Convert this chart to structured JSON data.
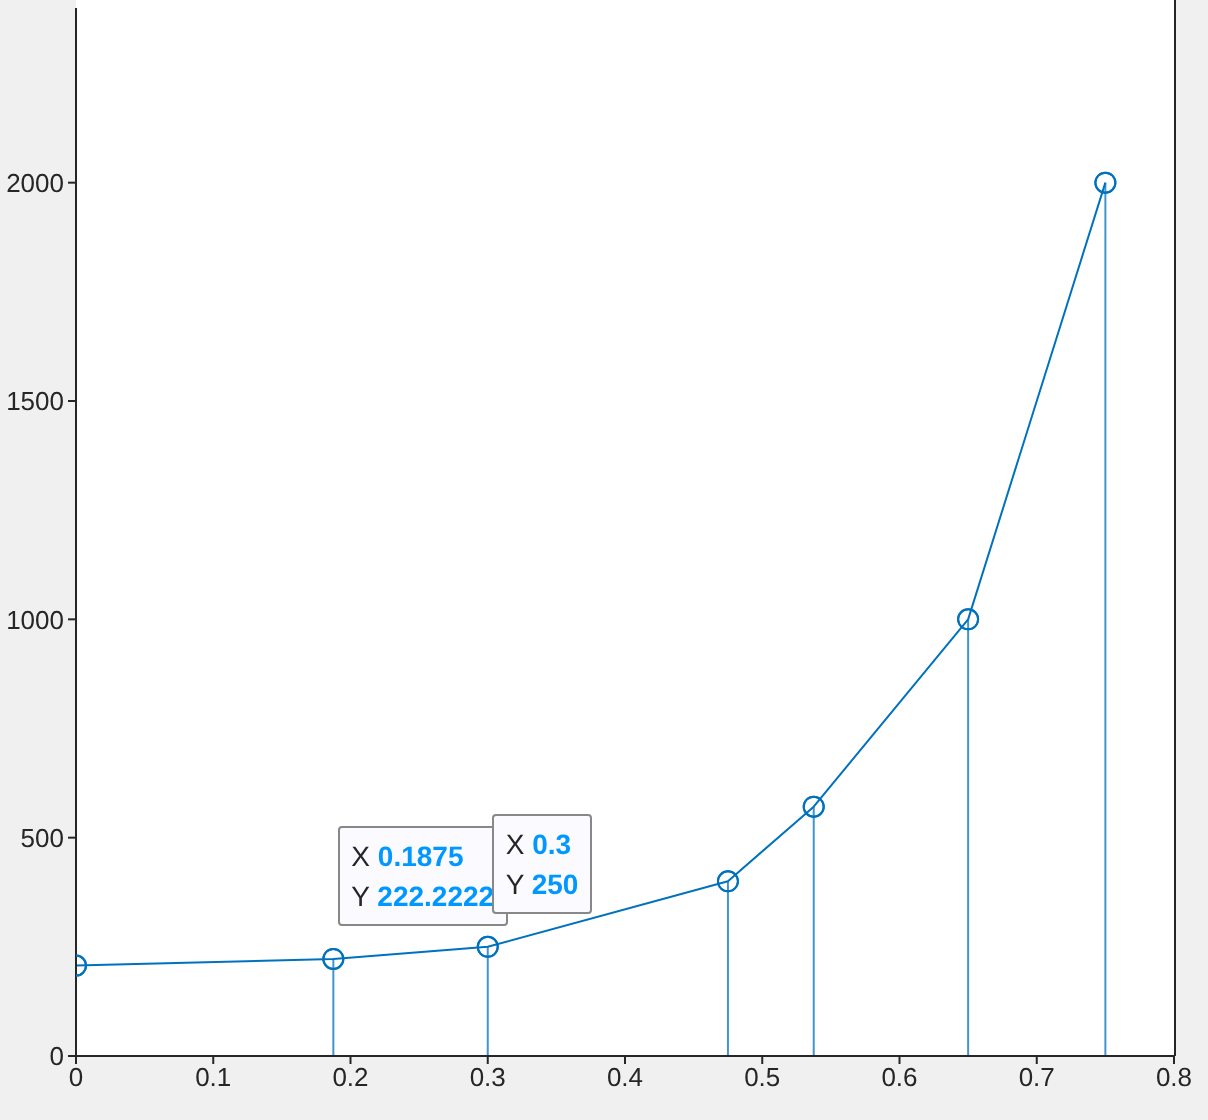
{
  "chart_data": {
    "type": "line",
    "x": [
      0,
      0.1875,
      0.3,
      0.475,
      0.5375,
      0.65,
      0.75
    ],
    "series": [
      {
        "color": "#0072bd",
        "values": [
          207,
          222.2222,
          250,
          400,
          571,
          1000,
          2000
        ]
      },
      {
        "type": "lollipop",
        "color": "#0072bd",
        "values": [
          207,
          222.2222,
          250,
          400,
          571,
          1000,
          2000
        ]
      }
    ],
    "marker": "circle",
    "xlim": [
      0,
      0.8
    ],
    "xticks": [
      0,
      0.1,
      0.2,
      0.3,
      0.4,
      0.5,
      0.6,
      0.7,
      0.8
    ],
    "ylim": [
      0,
      2400
    ],
    "yticks": [
      0,
      500,
      1000,
      1500,
      2000
    ],
    "annotations": [
      {
        "text": "X 0.1875\nY 222.2222",
        "x": 0.1875,
        "y": 222.2222
      },
      {
        "text": "X 0.3\nY 250",
        "x": 0.3,
        "y": 250
      }
    ]
  }
}
